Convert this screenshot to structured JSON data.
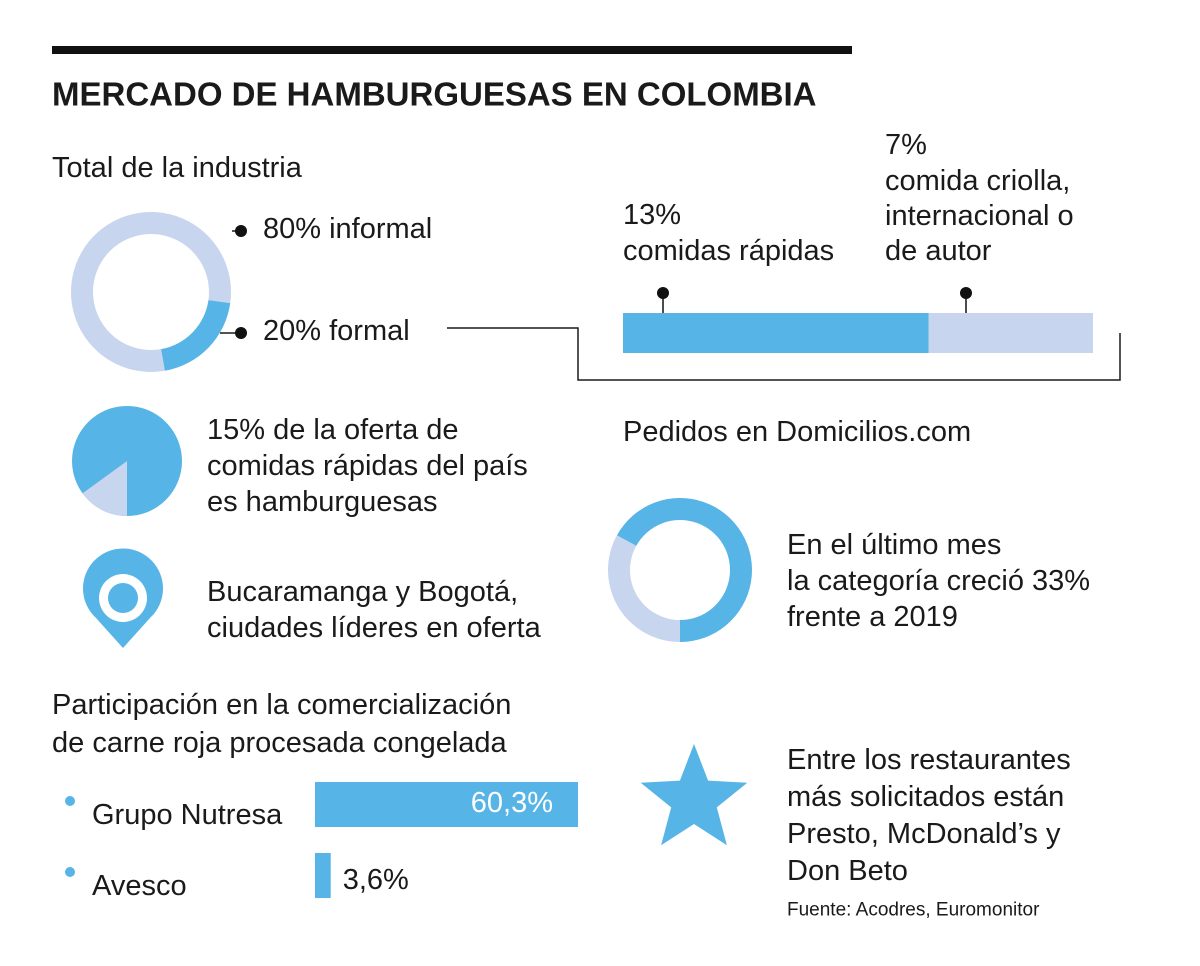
{
  "title": "MERCADO DE HAMBURGUESAS EN COLOMBIA",
  "chart_data": [
    {
      "type": "donut",
      "title": "Total de la industria",
      "categories": [
        "informal",
        "formal"
      ],
      "values": [
        80,
        20
      ],
      "value_labels": [
        "80% informal",
        "20% formal"
      ],
      "colors": [
        "#c8d5ee",
        "#56b4e6"
      ]
    },
    {
      "type": "stacked-bar",
      "categories": [
        [
          "comidas rápidas"
        ],
        [
          "comida criolla,",
          "internacional o",
          "de autor"
        ]
      ],
      "values": [
        13,
        7
      ],
      "value_labels": [
        "13%",
        "7%"
      ],
      "colors": [
        "#56b4e6",
        "#c8d5ee"
      ]
    },
    {
      "type": "pie",
      "values": [
        15
      ],
      "annotation": [
        "15% de la oferta de",
        "comidas rápidas del país",
        "es hamburguesas"
      ],
      "color": "#c8d5ee",
      "rest_color": "#56b4e6"
    },
    {
      "type": "ring",
      "title": "Pedidos en Domicilios.com",
      "values": [
        33
      ],
      "annotation": [
        "En el último mes",
        "la categoría creció 33%",
        "frente a 2019"
      ],
      "color": "#c8d5ee",
      "rest_color": "#56b4e6"
    },
    {
      "type": "bar",
      "title": [
        "Participación en la comercialización",
        "de carne roja procesada congelada"
      ],
      "categories": [
        "Grupo Nutresa",
        "Avesco"
      ],
      "values": [
        60.3,
        3.6
      ],
      "value_labels": [
        "60,3%",
        "3,6%"
      ],
      "color": "#56b4e6"
    }
  ],
  "notes": {
    "location": [
      "Bucaramanga y Bogotá,",
      "ciudades líderes en oferta"
    ],
    "restaurants": [
      "Entre los restaurantes",
      "más solicitados están",
      "Presto, McDonald’s y",
      "Don Beto"
    ]
  },
  "source": "Fuente: Acodres, Euromonitor"
}
